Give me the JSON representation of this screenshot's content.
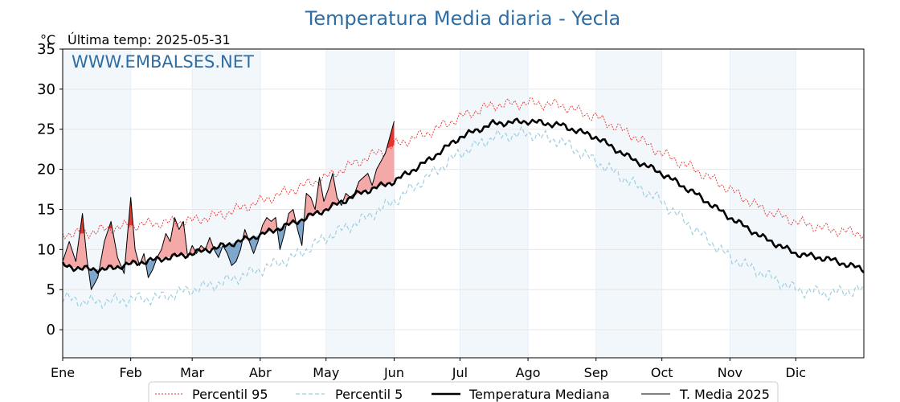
{
  "chart_data": {
    "type": "line",
    "title": "Temperatura Media diaria - Yecla",
    "unit_label": "°C",
    "last_temp_text": "Última temp: 2025-05-31",
    "watermark": "WWW.EMBALSES.NET",
    "ylim": [
      -3.5,
      35
    ],
    "yticks": [
      0,
      5,
      10,
      15,
      20,
      25,
      30,
      35
    ],
    "xlim": [
      1,
      366
    ],
    "x_unit": "day of year",
    "months": [
      {
        "label": "Ene",
        "start": 1,
        "end": 32
      },
      {
        "label": "Feb",
        "start": 32,
        "end": 60
      },
      {
        "label": "Mar",
        "start": 60,
        "end": 91
      },
      {
        "label": "Abr",
        "start": 91,
        "end": 121
      },
      {
        "label": "May",
        "start": 121,
        "end": 152
      },
      {
        "label": "Jun",
        "start": 152,
        "end": 182
      },
      {
        "label": "Jul",
        "start": 182,
        "end": 213
      },
      {
        "label": "Ago",
        "start": 213,
        "end": 244
      },
      {
        "label": "Sep",
        "start": 244,
        "end": 274
      },
      {
        "label": "Oct",
        "start": 274,
        "end": 305
      },
      {
        "label": "Nov",
        "start": 305,
        "end": 335
      },
      {
        "label": "Dic",
        "start": 335,
        "end": 366
      }
    ],
    "shaded_months": [
      "Ene",
      "Mar",
      "May",
      "Jul",
      "Sep",
      "Nov"
    ],
    "grid": true,
    "legend_position": "bottom",
    "colors": {
      "p95": "#e8322c",
      "p5": "#9ecfe0",
      "median": "#000000",
      "current": "#000000",
      "above_fill": "#f4a9a8",
      "below_fill": "#7ea7cb",
      "extreme_above": "#e8322c",
      "extreme_below": "#2c6aa0",
      "band": "#f2f7fc",
      "title": "#2e6da4"
    },
    "series": [
      {
        "name": "Percentil 95",
        "style": "dotted-red",
        "x": [
          1,
          10,
          20,
          32,
          45,
          60,
          75,
          91,
          106,
          121,
          136,
          152,
          167,
          182,
          197,
          213,
          228,
          244,
          259,
          274,
          289,
          305,
          320,
          335,
          350,
          366
        ],
        "values": [
          12.0,
          12.0,
          12.5,
          13.0,
          13.3,
          13.6,
          14.5,
          16.0,
          17.5,
          19.0,
          21.0,
          23.0,
          24.5,
          26.5,
          28.0,
          28.3,
          28.0,
          26.5,
          24.5,
          22.0,
          20.0,
          17.5,
          15.0,
          13.5,
          12.5,
          12.0
        ]
      },
      {
        "name": "Percentil 5",
        "style": "dashed-lightblue",
        "x": [
          1,
          10,
          20,
          32,
          45,
          60,
          75,
          91,
          106,
          121,
          136,
          152,
          167,
          182,
          197,
          213,
          228,
          244,
          259,
          274,
          289,
          305,
          320,
          335,
          350,
          366
        ],
        "values": [
          4.0,
          3.5,
          3.5,
          3.8,
          4.0,
          5.0,
          6.0,
          7.5,
          9.0,
          11.5,
          13.5,
          16.0,
          19.0,
          22.0,
          24.0,
          24.5,
          23.5,
          21.0,
          18.5,
          16.0,
          12.5,
          9.0,
          7.0,
          5.0,
          4.5,
          5.0
        ]
      },
      {
        "name": "Temperatura Mediana",
        "style": "thick-black",
        "x": [
          1,
          10,
          20,
          32,
          45,
          60,
          75,
          91,
          106,
          121,
          136,
          152,
          167,
          182,
          197,
          213,
          228,
          244,
          259,
          274,
          289,
          305,
          320,
          335,
          350,
          366
        ],
        "values": [
          8.0,
          7.6,
          7.5,
          8.2,
          8.8,
          9.5,
          10.5,
          11.8,
          13.3,
          15.0,
          17.0,
          18.5,
          21.0,
          24.0,
          25.7,
          26.0,
          25.5,
          24.0,
          21.5,
          19.5,
          17.0,
          14.0,
          11.5,
          9.5,
          8.8,
          7.5
        ]
      },
      {
        "name": "T. Media 2025",
        "style": "thin-black",
        "x": [
          1,
          4,
          7,
          10,
          12,
          14,
          17,
          20,
          23,
          26,
          29,
          32,
          34,
          36,
          38,
          40,
          42,
          44,
          46,
          48,
          50,
          52,
          54,
          56,
          58,
          60,
          62,
          64,
          66,
          68,
          70,
          72,
          74,
          76,
          78,
          80,
          82,
          84,
          86,
          88,
          90,
          92,
          94,
          96,
          98,
          100,
          102,
          104,
          106,
          108,
          110,
          112,
          114,
          116,
          118,
          120,
          122,
          124,
          126,
          128,
          130,
          132,
          134,
          136,
          138,
          140,
          142,
          144,
          146,
          148,
          150,
          152
        ],
        "values": [
          8.5,
          11.0,
          8.5,
          14.5,
          9.0,
          5.0,
          6.5,
          11.0,
          13.5,
          9.0,
          7.0,
          16.5,
          10.0,
          8.0,
          9.5,
          6.5,
          7.5,
          9.0,
          10.0,
          12.0,
          11.0,
          14.0,
          12.5,
          13.5,
          9.0,
          10.5,
          9.5,
          10.5,
          10.0,
          11.5,
          10.0,
          9.0,
          10.5,
          9.5,
          8.0,
          8.5,
          10.0,
          12.5,
          11.0,
          9.5,
          11.0,
          13.0,
          14.0,
          13.5,
          14.0,
          10.0,
          12.0,
          14.5,
          15.0,
          12.5,
          10.5,
          17.0,
          16.5,
          15.0,
          19.0,
          16.0,
          17.5,
          19.5,
          16.5,
          15.5,
          17.0,
          16.5,
          17.0,
          18.5,
          19.0,
          19.5,
          18.0,
          20.0,
          21.0,
          22.0,
          24.0,
          26.0
        ]
      }
    ],
    "legend": [
      "Percentil 95",
      "Percentil 5",
      "Temperatura Mediana",
      "T. Media 2025"
    ]
  }
}
